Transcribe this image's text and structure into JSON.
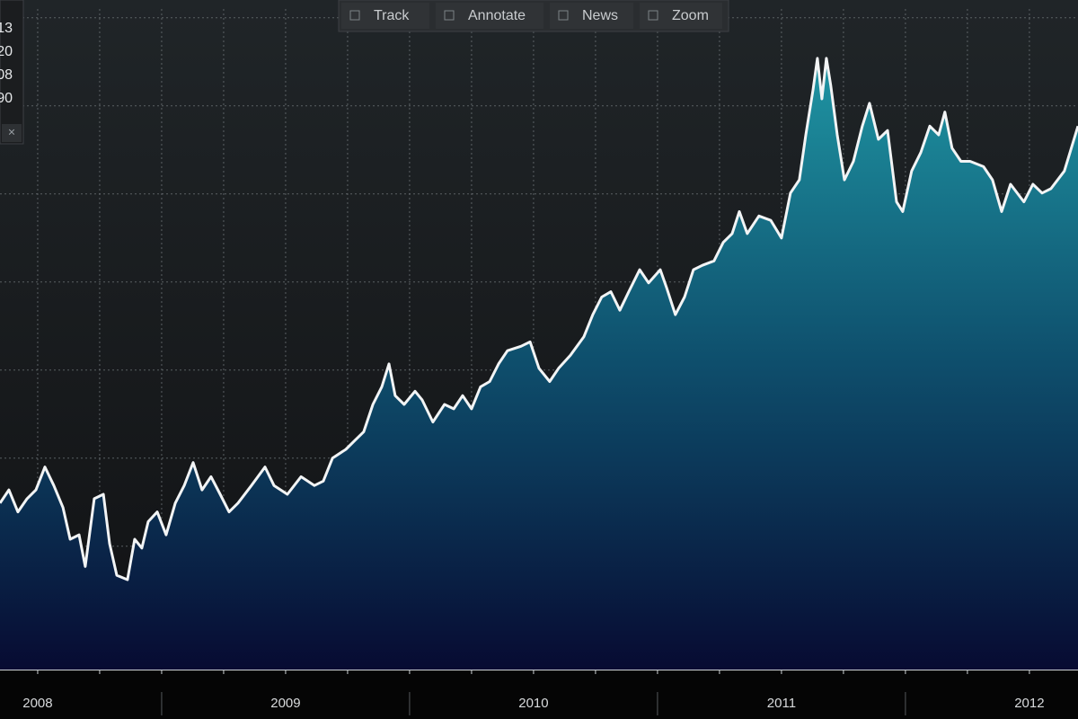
{
  "chart_data": {
    "type": "area",
    "x": [
      2008.348,
      2008.384,
      2008.42,
      2008.457,
      2008.493,
      2008.529,
      2008.565,
      2008.602,
      2008.631,
      2008.667,
      2008.692,
      2008.728,
      2008.765,
      2008.79,
      2008.819,
      2008.862,
      2008.891,
      2008.92,
      2008.946,
      2008.982,
      2009.018,
      2009.055,
      2009.091,
      2009.127,
      2009.163,
      2009.199,
      2009.236,
      2009.272,
      2009.308,
      2009.362,
      2009.417,
      2009.453,
      2009.507,
      2009.562,
      2009.616,
      2009.652,
      2009.689,
      2009.743,
      2009.779,
      2009.815,
      2009.852,
      2009.888,
      2009.917,
      2009.942,
      2009.978,
      2010.022,
      2010.051,
      2010.094,
      2010.141,
      2010.178,
      2010.214,
      2010.25,
      2010.286,
      2010.323,
      2010.359,
      2010.395,
      2010.449,
      2010.486,
      2010.522,
      2010.565,
      2010.601,
      2010.649,
      2010.703,
      2010.739,
      2010.775,
      2010.812,
      2010.848,
      2010.884,
      2010.928,
      2010.964,
      2011.011,
      2011.036,
      2011.072,
      2011.109,
      2011.145,
      2011.181,
      2011.228,
      2011.265,
      2011.301,
      2011.33,
      2011.362,
      2011.409,
      2011.457,
      2011.5,
      2011.536,
      2011.572,
      2011.598,
      2011.627,
      2011.645,
      2011.663,
      2011.681,
      2011.699,
      2011.725,
      2011.754,
      2011.79,
      2011.826,
      2011.855,
      2011.891,
      2011.928,
      2011.964,
      2011.989,
      2012.025,
      2012.062,
      2012.098,
      2012.134,
      2012.159,
      2012.188,
      2012.224,
      2012.261,
      2012.315,
      2012.351,
      2012.388,
      2012.424,
      2012.478,
      2012.514,
      2012.551,
      2012.587,
      2012.641,
      2012.696
    ],
    "series": [
      {
        "color": "#f2f4f5",
        "values": [
          1.89,
          2.04,
          1.79,
          1.94,
          2.04,
          2.3,
          2.09,
          1.84,
          1.48,
          1.53,
          1.17,
          1.94,
          1.99,
          1.43,
          1.07,
          1.02,
          1.48,
          1.38,
          1.68,
          1.79,
          1.53,
          1.89,
          2.09,
          2.35,
          2.04,
          2.19,
          1.99,
          1.79,
          1.89,
          2.09,
          2.3,
          2.09,
          1.99,
          2.19,
          2.09,
          2.14,
          2.4,
          2.5,
          2.6,
          2.7,
          3.01,
          3.21,
          3.47,
          3.11,
          3.01,
          3.16,
          3.06,
          2.81,
          3.01,
          2.96,
          3.11,
          2.96,
          3.21,
          3.27,
          3.47,
          3.62,
          3.67,
          3.72,
          3.42,
          3.27,
          3.42,
          3.57,
          3.78,
          4.03,
          4.23,
          4.29,
          4.08,
          4.29,
          4.54,
          4.39,
          4.54,
          4.34,
          4.03,
          4.23,
          4.54,
          4.59,
          4.64,
          4.85,
          4.95,
          5.2,
          4.95,
          5.15,
          5.1,
          4.9,
          5.41,
          5.56,
          6.07,
          6.58,
          6.94,
          6.48,
          6.94,
          6.63,
          6.07,
          5.56,
          5.77,
          6.17,
          6.43,
          6.02,
          6.12,
          5.31,
          5.2,
          5.66,
          5.87,
          6.17,
          6.07,
          6.33,
          5.92,
          5.77,
          5.77,
          5.71,
          5.56,
          5.2,
          5.51,
          5.31,
          5.51,
          5.41,
          5.46,
          5.66,
          6.17
        ]
      }
    ],
    "xlim": [
      2008.348,
      2012.696
    ],
    "xticks": [
      {
        "value": 2008.5,
        "label": "2008"
      },
      {
        "value": 2009.5,
        "label": "2009"
      },
      {
        "value": 2010.5,
        "label": "2010"
      },
      {
        "value": 2011.5,
        "label": "2011"
      },
      {
        "value": 2012.5,
        "label": "2012"
      }
    ],
    "xgrid": [
      2008.5,
      2008.75,
      2009,
      2009.25,
      2009.5,
      2009.75,
      2010,
      2010.25,
      2010.5,
      2010.75,
      2011,
      2011.25,
      2011.5,
      2011.75,
      2012,
      2012.25,
      2012.5
    ],
    "ylim": [
      0,
      7.5
    ],
    "yticks": [
      0.4,
      1.4,
      2.4,
      3.4,
      4.4,
      5.4,
      6.4,
      7.4
    ],
    "grid": true
  },
  "toolbar": [
    "Track",
    "Annotate",
    "News",
    "Zoom"
  ],
  "legend_panel": [
    "13",
    "20",
    "08",
    "90"
  ]
}
